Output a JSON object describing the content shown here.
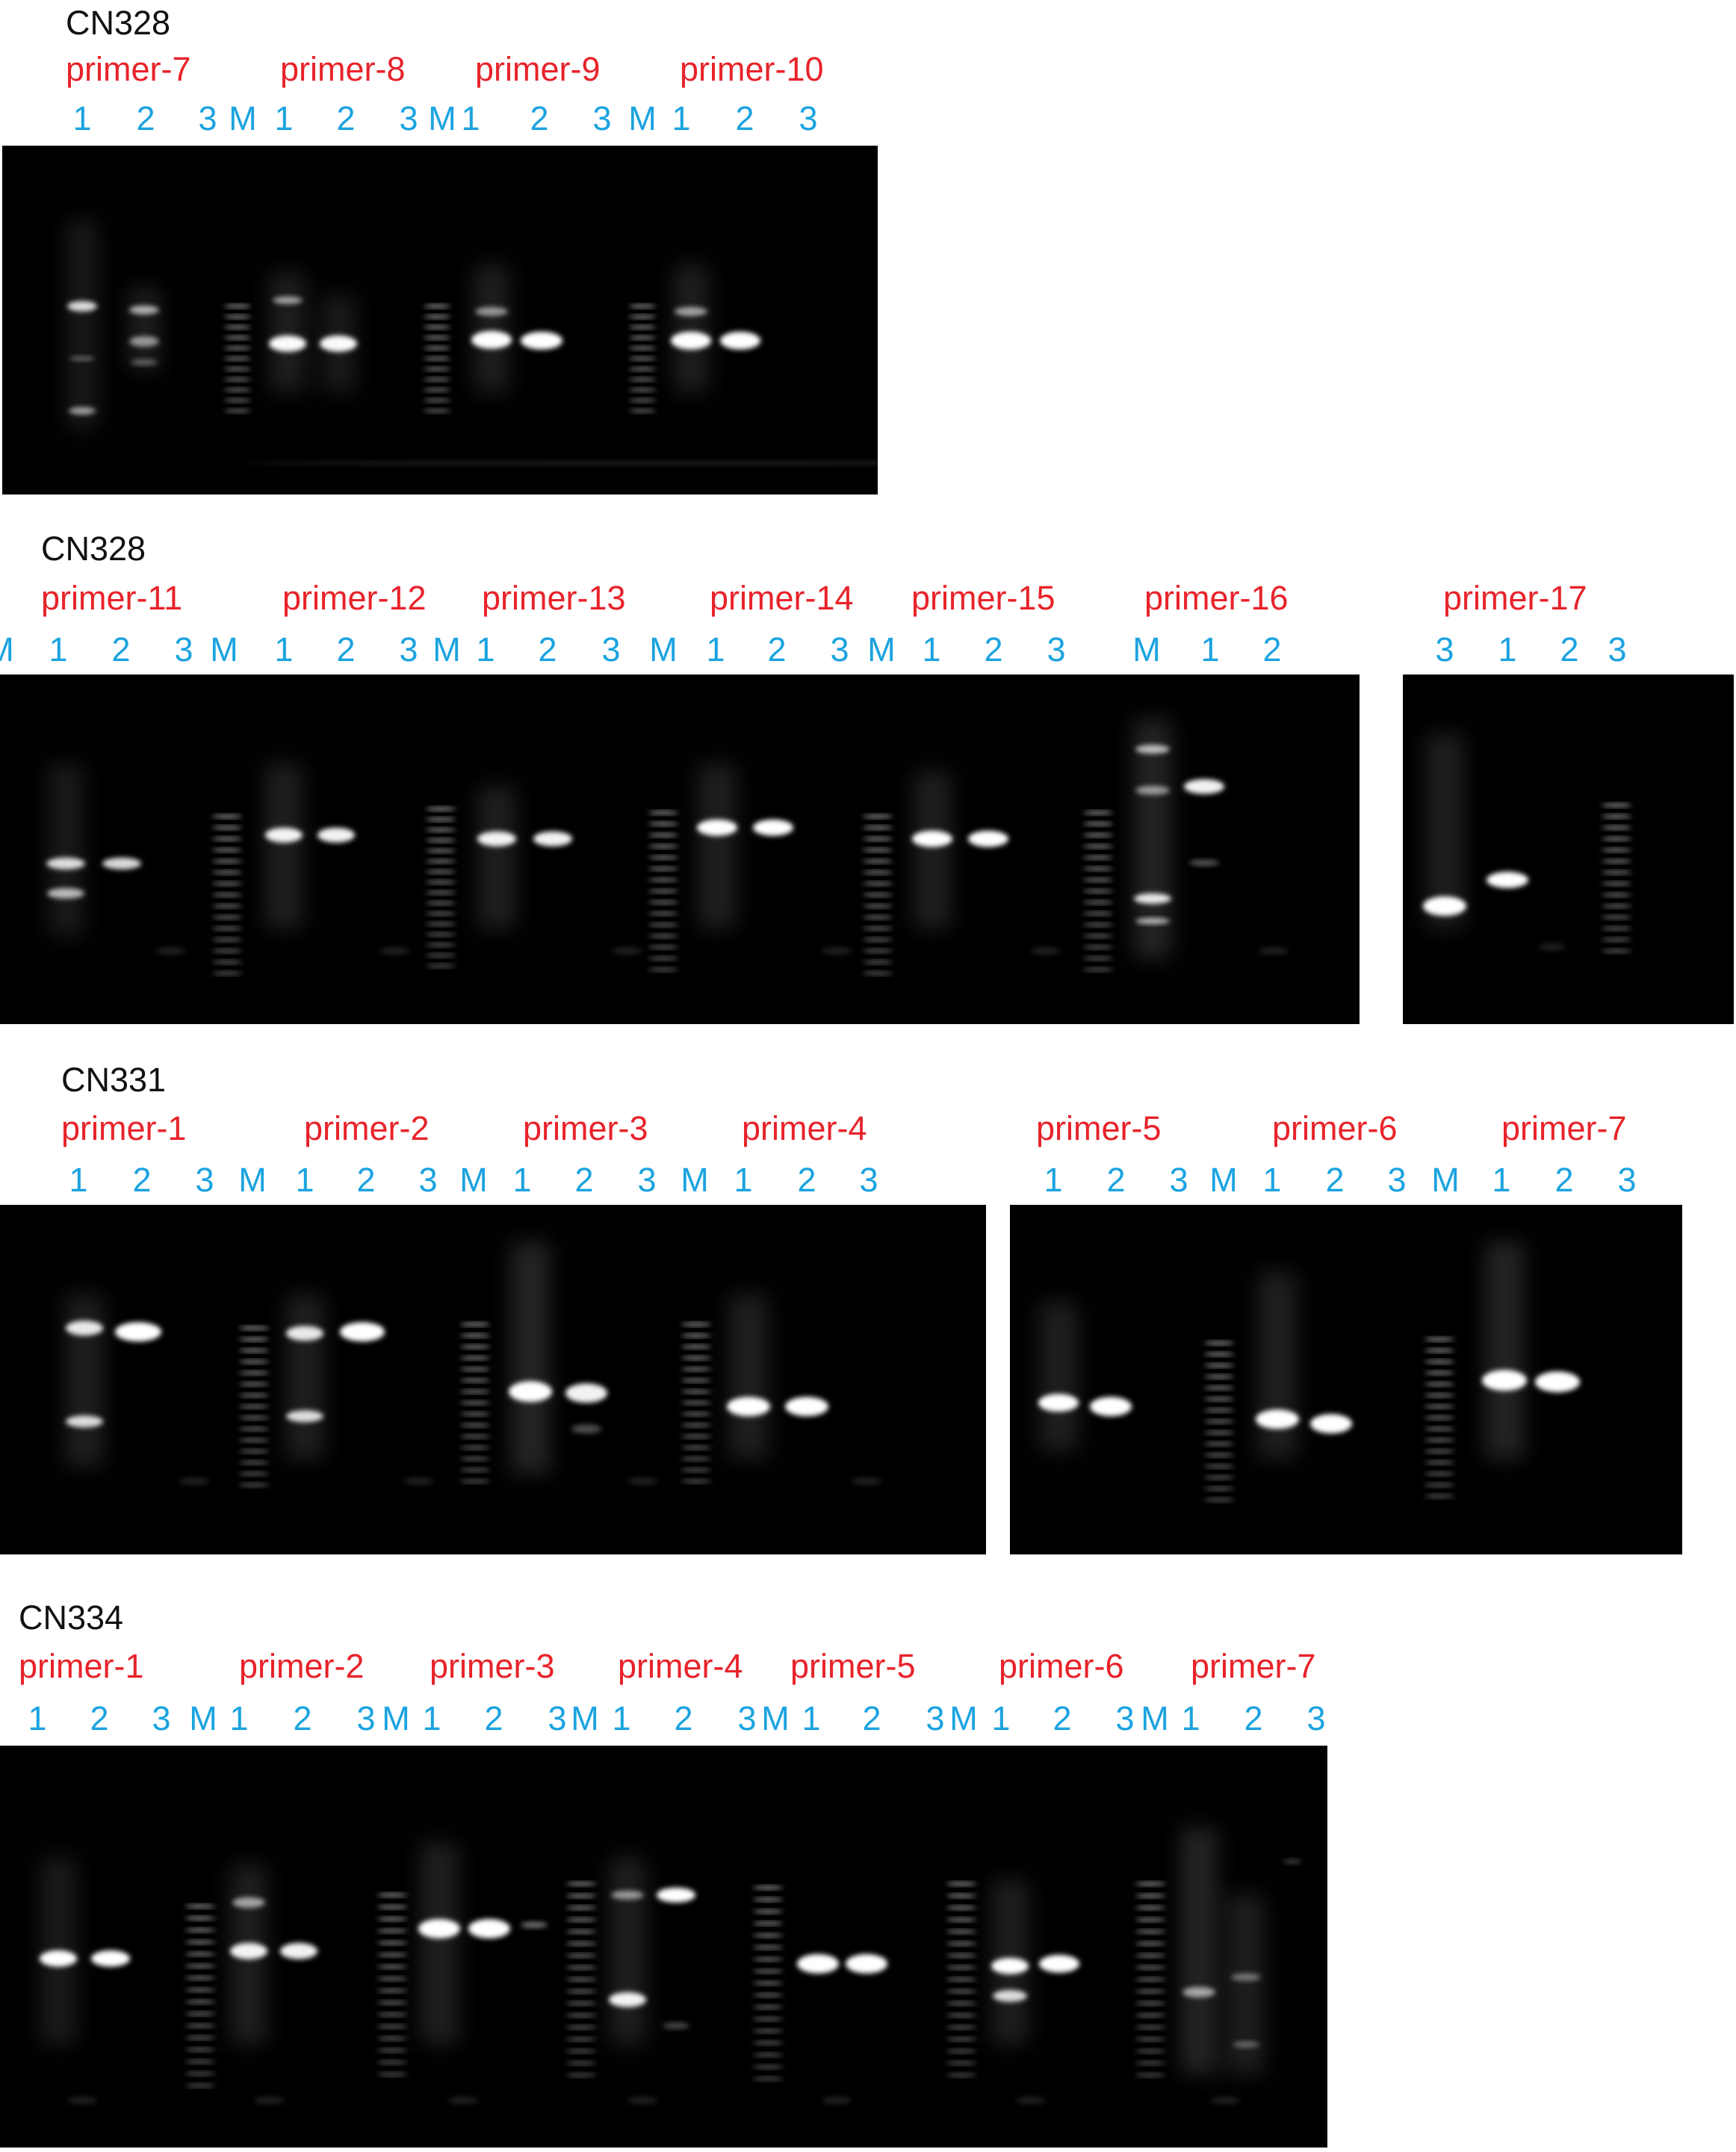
{
  "colors": {
    "title": "#111111",
    "primer_label": "#e8232a",
    "lane_label": "#1ba3e0",
    "gel_background": "#000000",
    "band": "#ffffff"
  },
  "sections": [
    {
      "title": "CN328",
      "primers": [
        "primer-7",
        "primer-8",
        "primer-9",
        "primer-10"
      ],
      "lanes": [
        "1",
        "2",
        "3",
        "M",
        "1",
        "2",
        "3",
        "M",
        "1",
        "2",
        "3",
        "M",
        "1",
        "2",
        "3"
      ]
    },
    {
      "title": "CN328",
      "primers": [
        "primer-11",
        "primer-12",
        "primer-13",
        "primer-14",
        "primer-15",
        "primer-16",
        "primer-17"
      ],
      "lanes": [
        "1",
        "2",
        "3",
        "M",
        "1",
        "2",
        "3",
        "M",
        "1",
        "2",
        "3",
        "M",
        "1",
        "2",
        "3",
        "M",
        "1",
        "2",
        "3",
        "M",
        "1",
        "2",
        "3",
        "1",
        "2",
        "3",
        "M"
      ]
    },
    {
      "title": "CN331",
      "primers": [
        "primer-1",
        "primer-2",
        "primer-3",
        "primer-4",
        "primer-5",
        "primer-6",
        "primer-7"
      ],
      "lanes": [
        "1",
        "2",
        "3",
        "M",
        "1",
        "2",
        "3",
        "M",
        "1",
        "2",
        "3",
        "M",
        "1",
        "2",
        "3",
        "1",
        "2",
        "3",
        "M",
        "1",
        "2",
        "3",
        "M",
        "1",
        "2",
        "3"
      ]
    },
    {
      "title": "CN334",
      "primers": [
        "primer-1",
        "primer-2",
        "primer-3",
        "primer-4",
        "primer-5",
        "primer-6",
        "primer-7"
      ],
      "lanes": [
        "1",
        "2",
        "3",
        "M",
        "1",
        "2",
        "3",
        "M",
        "1",
        "2",
        "3",
        "M",
        "1",
        "2",
        "3",
        "M",
        "1",
        "2",
        "3",
        "M",
        "1",
        "2",
        "3",
        "M",
        "1",
        "2",
        "3"
      ]
    }
  ]
}
